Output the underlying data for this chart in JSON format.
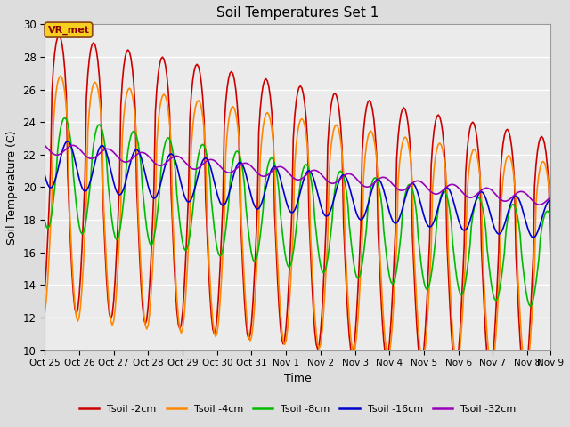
{
  "title": "Soil Temperatures Set 1",
  "xlabel": "Time",
  "ylabel": "Soil Temperature (C)",
  "ylim": [
    10,
    30
  ],
  "xlim": [
    0,
    352
  ],
  "xtick_positions": [
    0,
    24,
    48,
    72,
    96,
    120,
    144,
    168,
    192,
    216,
    240,
    264,
    288,
    312,
    336,
    352
  ],
  "xtick_labels": [
    "Oct 25",
    "Oct 26",
    "Oct 27",
    "Oct 28",
    "Oct 29",
    "Oct 30",
    "Oct 31",
    "Nov 1",
    "Nov 2",
    "Nov 3",
    "Nov 4",
    "Nov 5",
    "Nov 6",
    "Nov 7",
    "Nov 8",
    "Nov 9"
  ],
  "ytick_positions": [
    10,
    12,
    14,
    16,
    18,
    20,
    22,
    24,
    26,
    28,
    30
  ],
  "legend_labels": [
    "Tsoil -2cm",
    "Tsoil -4cm",
    "Tsoil -8cm",
    "Tsoil -16cm",
    "Tsoil -32cm"
  ],
  "line_colors": [
    "#cc0000",
    "#ff8800",
    "#00bb00",
    "#0000cc",
    "#9900bb"
  ],
  "annotation_text": "VR_met",
  "bg_color": "#dddddd",
  "plot_bg_color": "#ebebeb",
  "grid_color": "#ffffff",
  "num_hours": 353
}
